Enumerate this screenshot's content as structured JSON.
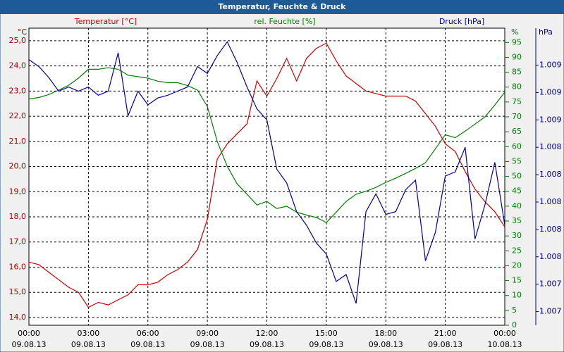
{
  "chart_data": {
    "type": "line",
    "title": "Temperatur, Feuchte & Druck",
    "ylabel": "°C",
    "y2label": "%",
    "y3label": "hPa",
    "x": [
      0,
      0.5,
      1,
      1.5,
      2,
      2.5,
      3,
      3.5,
      4,
      4.5,
      5,
      5.5,
      6,
      6.5,
      7,
      7.5,
      8,
      8.5,
      9,
      9.5,
      10,
      10.5,
      11,
      11.5,
      12,
      12.5,
      13,
      13.5,
      14,
      14.5,
      15,
      15.5,
      16,
      16.5,
      17,
      17.5,
      18,
      18.5,
      19,
      19.5,
      20,
      20.5,
      21,
      21.5,
      22,
      22.5,
      23,
      23.5,
      24
    ],
    "xlim": [
      0,
      24
    ],
    "xticks": [
      {
        "value": 0,
        "label": "00:00"
      },
      {
        "value": 3,
        "label": "03:00"
      },
      {
        "value": 6,
        "label": "06:00"
      },
      {
        "value": 9,
        "label": "09:00"
      },
      {
        "value": 12,
        "label": "12:00"
      },
      {
        "value": 15,
        "label": "15:00"
      },
      {
        "value": 18,
        "label": "18:00"
      },
      {
        "value": 21,
        "label": "21:00"
      },
      {
        "value": 24,
        "label": "00:00"
      }
    ],
    "xtick_dates": [
      "09.08.13",
      "09.08.13",
      "09.08.13",
      "09.08.13",
      "09.08.13",
      "09.08.13",
      "09.08.13",
      "09.08.13",
      "10.08.13"
    ],
    "ylim": [
      13.69,
      25.5
    ],
    "yticks": [
      {
        "value": 14,
        "label": "14,0"
      },
      {
        "value": 15,
        "label": "15,0"
      },
      {
        "value": 16,
        "label": "16,0"
      },
      {
        "value": 17,
        "label": "17,0"
      },
      {
        "value": 18,
        "label": "18,0"
      },
      {
        "value": 19,
        "label": "19,0"
      },
      {
        "value": 20,
        "label": "20,0"
      },
      {
        "value": 21,
        "label": "21,0"
      },
      {
        "value": 22,
        "label": "22,0"
      },
      {
        "value": 23,
        "label": "23,0"
      },
      {
        "value": 24,
        "label": "24,0"
      },
      {
        "value": 25,
        "label": "25,0"
      }
    ],
    "y2lim": [
      0,
      99.8
    ],
    "y2ticks": [
      0,
      5,
      10,
      15,
      20,
      25,
      30,
      35,
      40,
      45,
      50,
      55,
      60,
      65,
      70,
      75,
      80,
      85,
      90,
      95
    ],
    "y3lim": [
      1007.5,
      1009.67
    ],
    "y3ticks": [
      {
        "value": 1009.4,
        "label": "1.009"
      },
      {
        "value": 1009.2,
        "label": "1.009"
      },
      {
        "value": 1009.0,
        "label": "1.009"
      },
      {
        "value": 1008.8,
        "label": "1.008"
      },
      {
        "value": 1008.6,
        "label": "1.008"
      },
      {
        "value": 1008.4,
        "label": "1.008"
      },
      {
        "value": 1008.2,
        "label": "1.008"
      },
      {
        "value": 1008.0,
        "label": "1.008"
      },
      {
        "value": 1007.8,
        "label": "1.007"
      },
      {
        "value": 1007.6,
        "label": "1.007"
      }
    ],
    "grid": true,
    "series": [
      {
        "name": "Temperatur [°C]",
        "color": "#cc0000",
        "axis": "y",
        "values": [
          16.2,
          16.1,
          15.8,
          15.5,
          15.2,
          15.0,
          14.4,
          14.6,
          14.5,
          14.7,
          14.9,
          15.3,
          15.3,
          15.4,
          15.7,
          15.9,
          16.2,
          16.7,
          17.9,
          20.3,
          20.9,
          21.3,
          21.7,
          23.4,
          22.8,
          23.5,
          24.3,
          23.4,
          24.3,
          24.7,
          24.9,
          24.2,
          23.6,
          23.3,
          23.0,
          22.9,
          22.8,
          22.8,
          22.8,
          22.6,
          22.1,
          21.6,
          20.9,
          20.6,
          19.8,
          19.1,
          18.6,
          18.2,
          17.6
        ]
      },
      {
        "name": "rel. Feuchte [%]",
        "color": "#008000",
        "axis": "y2",
        "values": [
          76,
          76.5,
          77.5,
          79,
          80.6,
          83,
          86,
          86,
          86.5,
          86,
          84,
          83.5,
          83,
          82,
          81.5,
          81.5,
          80.5,
          79,
          73.5,
          61.7,
          53.4,
          47.5,
          44,
          40.4,
          41.6,
          39.2,
          40,
          38,
          37,
          36.2,
          34.5,
          38,
          41.6,
          44,
          45,
          46.3,
          48,
          49.4,
          51,
          52.7,
          54.6,
          59.3,
          64,
          63,
          65.2,
          67.6,
          70,
          74,
          78.3
        ]
      },
      {
        "name": "Druck [hPa]",
        "color": "#0000a0",
        "axis": "y3",
        "values": [
          1009.44,
          1009.39,
          1009.31,
          1009.21,
          1009.24,
          1009.21,
          1009.24,
          1009.18,
          1009.21,
          1009.49,
          1009.03,
          1009.21,
          1009.11,
          1009.16,
          1009.18,
          1009.21,
          1009.24,
          1009.39,
          1009.34,
          1009.47,
          1009.57,
          1009.42,
          1009.24,
          1009.08,
          1009.0,
          1008.64,
          1008.54,
          1008.33,
          1008.23,
          1008.1,
          1008.02,
          1007.82,
          1007.87,
          1007.66,
          1008.33,
          1008.46,
          1008.31,
          1008.33,
          1008.49,
          1008.56,
          1007.97,
          1008.18,
          1008.59,
          1008.62,
          1008.8,
          1008.13,
          1008.38,
          1008.69,
          1008.23
        ]
      }
    ]
  }
}
